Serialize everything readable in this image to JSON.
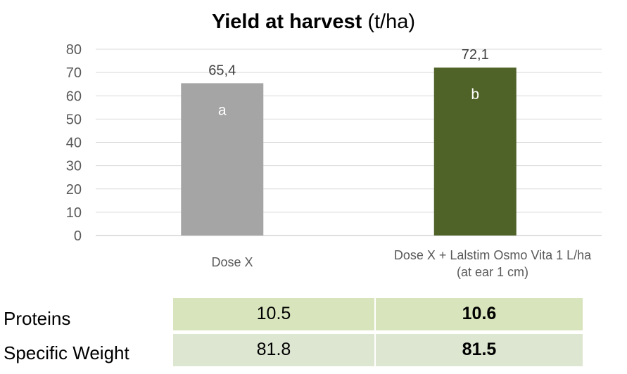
{
  "chart_data": {
    "type": "bar",
    "title": "Yield at harvest",
    "title_unit": "(t/ha)",
    "categories": [
      "Dose X",
      "Dose X + Lalstim Osmo Vita 1 L/ha"
    ],
    "categories_sub": [
      "",
      "(at ear 1 cm)"
    ],
    "values": [
      65.4,
      72.1
    ],
    "value_labels": [
      "65,4",
      "72,1"
    ],
    "significance_letters": [
      "a",
      "b"
    ],
    "bar_colors": [
      "#a5a5a5",
      "#4f6228"
    ],
    "ylim": [
      0,
      80
    ],
    "yticks": [
      0,
      10,
      20,
      30,
      40,
      50,
      60,
      70,
      80
    ],
    "grid": true,
    "xlabel": "",
    "ylabel": ""
  },
  "table": {
    "rows": [
      {
        "label": "Proteins",
        "values": [
          "10.5",
          "10.6"
        ]
      },
      {
        "label": "Specific Weight",
        "values": [
          "81.8",
          "81.5"
        ]
      }
    ],
    "colors": [
      "#d8e4bc",
      "#dde6d0"
    ]
  }
}
